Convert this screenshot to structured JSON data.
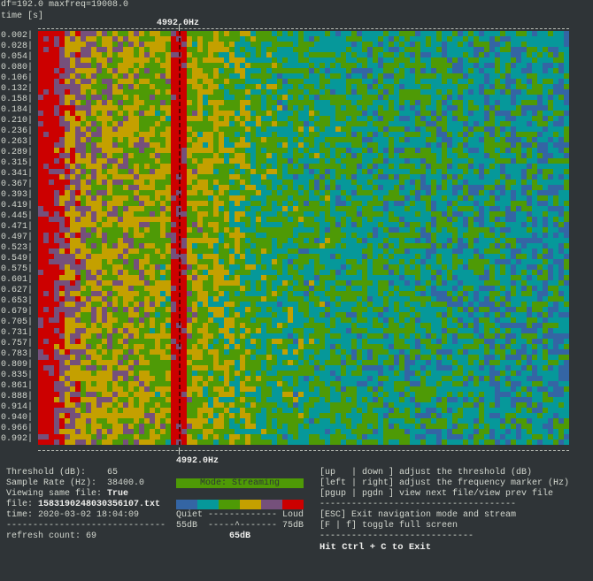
{
  "header": {
    "info": "df=192.0 maxfreq=19008.0",
    "time_label": "time [s]",
    "marker_freq": "4992.0Hz"
  },
  "time_labels": [
    "0.002|",
    "0.028|",
    "0.054|",
    "0.080|",
    "0.106|",
    "0.132|",
    "0.158|",
    "0.184|",
    "0.210|",
    "0.236|",
    "0.263|",
    "0.289|",
    "0.315|",
    "0.341|",
    "0.367|",
    "0.393|",
    "0.419|",
    "0.445|",
    "0.471|",
    "0.497|",
    "0.523|",
    "0.549|",
    "0.575|",
    "0.601|",
    "0.627|",
    "0.653|",
    "0.679|",
    "0.705|",
    "0.731|",
    "0.757|",
    "0.783|",
    "0.809|",
    "0.835|",
    "0.861|",
    "0.888|",
    "0.914|",
    "0.940|",
    "0.966|",
    "0.992|"
  ],
  "colormap": [
    "#3465a4",
    "#06989a",
    "#4e9a06",
    "#c4a000",
    "#75507b",
    "#cc0000"
  ],
  "status": {
    "threshold_label": "Threshold (dB):    ",
    "threshold": "65",
    "sample_rate_label": "Sample Rate (Hz):  ",
    "sample_rate": "38400.0",
    "viewing_label": "Viewing same file: ",
    "viewing": "True",
    "file_label": "file: ",
    "file": "1583190248030356107.txt",
    "time": "time: 2020-03-02 18:04:09",
    "divider": "------------------------------",
    "refresh": "refresh count: 69"
  },
  "legend": {
    "mode": "Mode: Streaming",
    "quiet_loud": "Quiet ------------- Loud",
    "scale": "55dB  -----^------- 75dB",
    "current": "65dB"
  },
  "help": {
    "lines": [
      "[up   | down ] adjust the threshold (dB)",
      "[left | right] adjust the frequency marker (Hz)",
      "[pgup | pgdn ] view next file/view prev file",
      "-------------------------------------",
      "[ESC] Exit navigation mode and stream",
      "[F | f] toggle full screen",
      "-----------------------------"
    ],
    "exit": "Hit Ctrl + C to Exit"
  }
}
